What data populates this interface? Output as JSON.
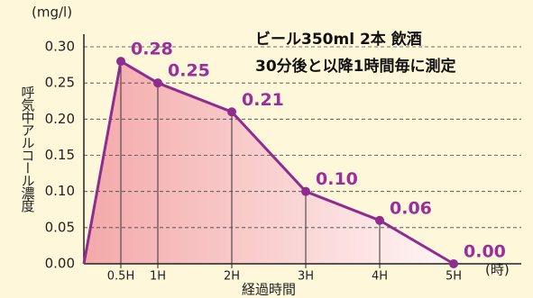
{
  "chart_data": {
    "type": "area",
    "y_unit": "(mg/l)",
    "y_label": "呼気中アルコール濃度",
    "x_label": "経過時間",
    "x_unit": "(時)",
    "annotations": [
      "ビール350ml 2本 飲酒",
      "30分後と以降1時間毎に測定"
    ],
    "x": [
      0,
      0.5,
      1,
      2,
      3,
      4,
      5
    ],
    "values": [
      0,
      0.28,
      0.25,
      0.21,
      0.1,
      0.06,
      0.0
    ],
    "value_labels": [
      null,
      "0.28",
      "0.25",
      "0.21",
      "0.10",
      "0.06",
      "0.00"
    ],
    "color": "#8e2c90",
    "xlim": [
      0,
      5
    ],
    "xticks": [
      {
        "value": 0.5,
        "label": "0.5H"
      },
      {
        "value": 1,
        "label": "1H"
      },
      {
        "value": 2,
        "label": "2H"
      },
      {
        "value": 3,
        "label": "3H"
      },
      {
        "value": 4,
        "label": "4H"
      },
      {
        "value": 5,
        "label": "5H"
      }
    ],
    "ylim": [
      0,
      0.3
    ],
    "yticks": [
      {
        "value": 0,
        "label": "0.00"
      },
      {
        "value": 0.05,
        "label": "0.05"
      },
      {
        "value": 0.1,
        "label": "0.10"
      },
      {
        "value": 0.15,
        "label": "0.15"
      },
      {
        "value": 0.2,
        "label": "0.20"
      },
      {
        "value": 0.25,
        "label": "0.25"
      },
      {
        "value": 0.3,
        "label": "0.30"
      }
    ],
    "grid": true
  }
}
